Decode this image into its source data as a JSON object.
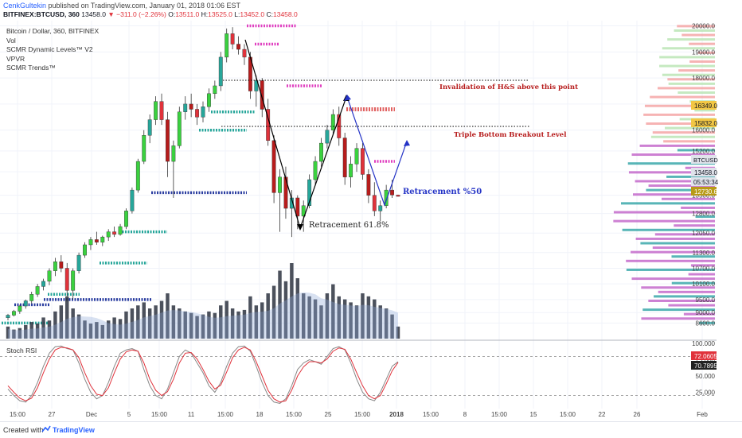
{
  "header": {
    "author": "CenkGultekin",
    "published_text": "published on TradingView.com, January 01, 2018 01:06 EST",
    "symbol": "BITFINEX:BTCUSD, 360",
    "last": "13458.0",
    "change": "▼ −311.0 (−2.26%)",
    "o_label": "O:",
    "o_value": "13511.0",
    "h_label": "H:",
    "h_value": "13525.0",
    "l_label": "L:",
    "l_value": "13452.0",
    "c_label": "C:",
    "c_value": "13458.0"
  },
  "legend": {
    "title": "Bitcoin / Dollar, 360, BITFINEX",
    "items": [
      "Vol",
      "SCMR Dynamic Levels™ V2",
      "VPVR",
      "SCMR Trends™"
    ]
  },
  "annotations": {
    "hs_invalidation": "Invalidation of H&S above this point",
    "triple_bottom": "Triple Bottom Breakout Level",
    "retracement_618": "Retracement 61.8%",
    "retracement_50": "Retracement %50"
  },
  "oscillator": {
    "title": "Stoch RSI",
    "k_value": "72.0605",
    "d_value": "70.7895"
  },
  "price_badges": {
    "symbol": "BTCUSD",
    "level_1": "16349.0",
    "level_2": "15832.0",
    "last": "13458.0",
    "countdown": "05:53:34",
    "level_3": "12730.6"
  },
  "footer": {
    "created_with": "Created with",
    "brand": "TradingView"
  },
  "colors": {
    "up": "#26a69a",
    "up_strong": "#3ad13f",
    "down": "#b71c1c",
    "down_alt": "#e0323b",
    "stoch_k": "#e0323b",
    "stoch_d": "#888888",
    "trend_line": "#000000",
    "retrace_line": "#2433c6",
    "vol": "#2d3340",
    "dyn_blue": "#2b3ea0",
    "dyn_teal": "#26a69a",
    "dyn_pink": "#e040c0",
    "vp_pink": "#c060c8",
    "vp_teal": "#2ea3a5"
  },
  "chart_data": [
    {
      "type": "candlestick",
      "title": "Bitcoin / Dollar, 360, BITFINEX",
      "ylim": [
        8000,
        20200
      ],
      "x_ticks": [
        "15:00",
        "27",
        "Dec",
        "5",
        "15:00",
        "11",
        "15:00",
        "18",
        "15:00",
        "25",
        "15:00",
        "2018",
        "15:00",
        "8",
        "15:00",
        "15",
        "15:00",
        "22",
        "26",
        "Feb"
      ],
      "y_ticks": [
        8600,
        9000,
        9500,
        10100,
        10700,
        11300,
        12050,
        12800,
        13500,
        14400,
        15200,
        16000,
        17000,
        18000,
        19000,
        20000
      ],
      "ohlc": [
        [
          8800,
          8950,
          8700,
          8900
        ],
        [
          8900,
          9100,
          8850,
          9050
        ],
        [
          9050,
          9300,
          8950,
          9250
        ],
        [
          9250,
          9500,
          9150,
          9450
        ],
        [
          9450,
          9800,
          9350,
          9700
        ],
        [
          9700,
          10100,
          9600,
          10000
        ],
        [
          10000,
          10300,
          9850,
          10200
        ],
        [
          10200,
          10700,
          10050,
          10600
        ],
        [
          10600,
          11100,
          10400,
          10950
        ],
        [
          10950,
          11200,
          10550,
          10700
        ],
        [
          10700,
          10900,
          9600,
          9850
        ],
        [
          9850,
          10700,
          9500,
          10600
        ],
        [
          10600,
          11300,
          10500,
          11200
        ],
        [
          11200,
          11700,
          11100,
          11600
        ],
        [
          11600,
          11900,
          11400,
          11800
        ],
        [
          11800,
          12100,
          11600,
          11700
        ],
        [
          11700,
          11950,
          11550,
          11900
        ],
        [
          11900,
          12200,
          11750,
          12100
        ],
        [
          12100,
          12300,
          11900,
          12000
        ],
        [
          12000,
          12400,
          11950,
          12300
        ],
        [
          12300,
          13000,
          12200,
          12900
        ],
        [
          12900,
          13800,
          12800,
          13700
        ],
        [
          13700,
          14900,
          13600,
          14800
        ],
        [
          14800,
          16000,
          14700,
          15800
        ],
        [
          15800,
          16600,
          15500,
          16400
        ],
        [
          16400,
          17300,
          16200,
          17100
        ],
        [
          17100,
          17400,
          16200,
          16400
        ],
        [
          16400,
          16700,
          14200,
          14800
        ],
        [
          14800,
          15600,
          13400,
          15400
        ],
        [
          15400,
          16900,
          15300,
          16700
        ],
        [
          16700,
          17300,
          16400,
          17000
        ],
        [
          17000,
          17400,
          16500,
          16800
        ],
        [
          16800,
          17000,
          16200,
          16500
        ],
        [
          16500,
          17100,
          16300,
          16900
        ],
        [
          16900,
          17600,
          16700,
          17400
        ],
        [
          17400,
          17900,
          17200,
          17700
        ],
        [
          17700,
          19000,
          17500,
          18800
        ],
        [
          18800,
          19900,
          18600,
          19700
        ],
        [
          19700,
          19950,
          19100,
          19300
        ],
        [
          19300,
          19600,
          18900,
          19100
        ],
        [
          19100,
          19300,
          18500,
          18800
        ],
        [
          18800,
          19000,
          17200,
          17500
        ],
        [
          17500,
          18100,
          16900,
          17900
        ],
        [
          17900,
          18000,
          16500,
          16800
        ],
        [
          16800,
          17200,
          15400,
          15600
        ],
        [
          15600,
          15800,
          13200,
          13600
        ],
        [
          13600,
          14500,
          12100,
          14200
        ],
        [
          14200,
          14600,
          12600,
          13000
        ],
        [
          13000,
          13700,
          11900,
          13400
        ],
        [
          13400,
          13500,
          12200,
          12700
        ],
        [
          12700,
          13300,
          12100,
          13100
        ],
        [
          13100,
          14300,
          13000,
          14100
        ],
        [
          14100,
          15000,
          13900,
          14800
        ],
        [
          14800,
          15700,
          14600,
          15500
        ],
        [
          15500,
          16200,
          15300,
          16000
        ],
        [
          16000,
          16800,
          15800,
          16600
        ],
        [
          16600,
          16900,
          15400,
          15700
        ],
        [
          15700,
          15900,
          13900,
          14200
        ],
        [
          14200,
          15000,
          13800,
          14700
        ],
        [
          14700,
          15500,
          14400,
          15300
        ],
        [
          15300,
          15500,
          14100,
          14300
        ],
        [
          14300,
          14500,
          13200,
          13500
        ],
        [
          13500,
          14000,
          12700,
          12900
        ],
        [
          12900,
          13300,
          12500,
          13100
        ],
        [
          13100,
          13900,
          13000,
          13700
        ],
        [
          13700,
          14100,
          13400,
          13511
        ],
        [
          13511,
          13525,
          13452,
          13458
        ]
      ],
      "volume": [
        8,
        6,
        7,
        9,
        11,
        10,
        14,
        12,
        18,
        22,
        28,
        20,
        16,
        12,
        10,
        11,
        9,
        12,
        14,
        13,
        18,
        20,
        22,
        24,
        20,
        22,
        25,
        30,
        22,
        20,
        18,
        17,
        15,
        16,
        18,
        17,
        22,
        25,
        20,
        18,
        19,
        28,
        22,
        24,
        30,
        35,
        45,
        38,
        50,
        40,
        30,
        28,
        26,
        22,
        30,
        36,
        28,
        26,
        24,
        22,
        30,
        28,
        26,
        22,
        20,
        16,
        8
      ],
      "volume_unit": "relative"
    },
    {
      "type": "line",
      "title": "Stoch RSI",
      "ylim": [
        0,
        100
      ],
      "y_ticks": [
        25.0,
        50.0,
        75.0,
        100.0
      ],
      "series": [
        {
          "values": [
            30,
            20,
            12,
            10,
            20,
            40,
            65,
            85,
            95,
            96,
            92,
            90,
            70,
            45,
            25,
            15,
            20,
            40,
            65,
            85,
            90,
            92,
            88,
            60,
            35,
            20,
            15,
            30,
            55,
            80,
            90,
            85,
            70,
            55,
            35,
            25,
            40,
            65,
            85,
            95,
            96,
            88,
            65,
            40,
            20,
            10,
            8,
            15,
            35,
            60,
            70,
            75,
            72,
            68,
            80,
            92,
            95,
            90,
            70,
            45,
            25,
            15,
            12,
            25,
            45,
            65,
            72
          ]
        },
        {
          "values": [
            35,
            25,
            16,
            12,
            16,
            32,
            55,
            76,
            90,
            94,
            93,
            90,
            78,
            55,
            35,
            22,
            20,
            32,
            55,
            76,
            87,
            90,
            88,
            70,
            45,
            28,
            20,
            26,
            45,
            70,
            85,
            86,
            76,
            60,
            42,
            30,
            36,
            56,
            78,
            90,
            94,
            90,
            72,
            50,
            28,
            15,
            10,
            12,
            28,
            50,
            64,
            72,
            72,
            70,
            76,
            88,
            93,
            91,
            76,
            55,
            35,
            20,
            15,
            20,
            38,
            58,
            70.8
          ]
        }
      ]
    }
  ]
}
